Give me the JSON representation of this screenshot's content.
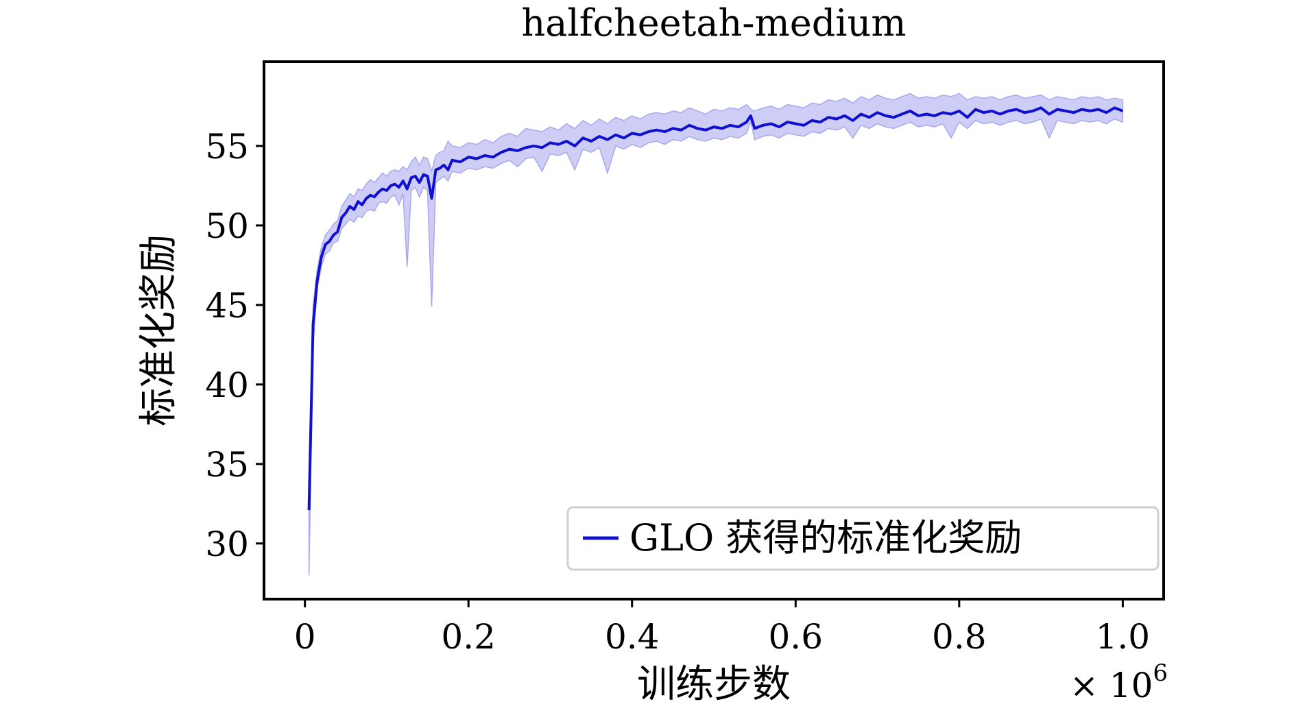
{
  "chart_data": {
    "type": "line",
    "title": "halfcheetah-medium",
    "xlabel": "训练步数",
    "ylabel": "标准化奖励",
    "x_multiplier_label": "× 10",
    "x_multiplier_exp": "6",
    "xlim": [
      -0.05,
      1.05
    ],
    "ylim": [
      26.5,
      60.3
    ],
    "xticks": [
      0,
      0.2,
      0.4,
      0.6,
      0.8,
      1.0
    ],
    "xtick_labels": [
      "0",
      "0.2",
      "0.4",
      "0.6",
      "0.8",
      "1.0"
    ],
    "yticks": [
      30,
      35,
      40,
      45,
      50,
      55
    ],
    "ytick_labels": [
      "30",
      "35",
      "40",
      "45",
      "50",
      "55"
    ],
    "grid": false,
    "legend_position": "lower-right",
    "colors": {
      "line": "#1010d0",
      "band": "#c8c8f4",
      "band_edge": "#a8a8ee"
    },
    "series": [
      {
        "name": "GLO 获得的标准化奖励",
        "x": [
          0.005,
          0.01,
          0.015,
          0.02,
          0.025,
          0.03,
          0.035,
          0.04,
          0.045,
          0.05,
          0.055,
          0.06,
          0.065,
          0.07,
          0.075,
          0.08,
          0.085,
          0.09,
          0.095,
          0.1,
          0.105,
          0.11,
          0.115,
          0.12,
          0.125,
          0.13,
          0.135,
          0.14,
          0.145,
          0.15,
          0.155,
          0.16,
          0.165,
          0.17,
          0.175,
          0.18,
          0.19,
          0.2,
          0.21,
          0.22,
          0.23,
          0.24,
          0.25,
          0.26,
          0.27,
          0.28,
          0.29,
          0.3,
          0.31,
          0.32,
          0.33,
          0.34,
          0.35,
          0.36,
          0.37,
          0.38,
          0.39,
          0.4,
          0.41,
          0.42,
          0.43,
          0.44,
          0.45,
          0.46,
          0.47,
          0.48,
          0.49,
          0.5,
          0.51,
          0.52,
          0.53,
          0.54,
          0.545,
          0.55,
          0.56,
          0.57,
          0.58,
          0.59,
          0.6,
          0.61,
          0.62,
          0.63,
          0.64,
          0.65,
          0.66,
          0.67,
          0.68,
          0.69,
          0.7,
          0.71,
          0.72,
          0.73,
          0.74,
          0.75,
          0.76,
          0.77,
          0.78,
          0.79,
          0.8,
          0.81,
          0.82,
          0.83,
          0.84,
          0.85,
          0.86,
          0.87,
          0.88,
          0.89,
          0.9,
          0.91,
          0.92,
          0.93,
          0.94,
          0.95,
          0.96,
          0.97,
          0.98,
          0.99,
          1.0
        ],
        "values": [
          32.1,
          43.8,
          46.5,
          48.0,
          48.8,
          49.0,
          49.4,
          49.6,
          50.5,
          50.8,
          51.2,
          51.0,
          51.5,
          51.3,
          51.7,
          51.9,
          51.8,
          52.1,
          52.3,
          52.2,
          52.5,
          52.6,
          52.4,
          52.8,
          52.3,
          53.0,
          53.1,
          52.7,
          53.2,
          53.1,
          51.7,
          53.5,
          53.6,
          53.8,
          53.5,
          54.1,
          54.0,
          54.3,
          54.2,
          54.4,
          54.3,
          54.6,
          54.8,
          54.7,
          54.9,
          55.0,
          54.9,
          55.2,
          55.1,
          55.3,
          55.0,
          55.5,
          55.3,
          55.6,
          55.4,
          55.7,
          55.5,
          55.8,
          55.7,
          55.9,
          56.0,
          55.9,
          56.1,
          56.0,
          56.3,
          56.1,
          56.0,
          56.2,
          56.1,
          56.3,
          56.2,
          56.5,
          56.9,
          56.1,
          56.3,
          56.4,
          56.2,
          56.5,
          56.4,
          56.3,
          56.6,
          56.5,
          56.8,
          56.7,
          56.9,
          56.6,
          57.0,
          56.8,
          57.1,
          56.9,
          56.8,
          57.0,
          57.2,
          56.9,
          57.0,
          56.9,
          57.1,
          57.0,
          57.2,
          56.8,
          57.3,
          57.1,
          57.2,
          57.0,
          57.2,
          57.3,
          57.1,
          57.2,
          57.4,
          57.0,
          57.3,
          57.2,
          57.1,
          57.3,
          57.2,
          57.3,
          57.1,
          57.4,
          57.2
        ],
        "lower": [
          28.0,
          42.5,
          46.0,
          47.4,
          48.2,
          48.4,
          48.9,
          49.0,
          49.8,
          50.1,
          50.4,
          50.2,
          50.6,
          50.5,
          50.9,
          51.0,
          50.9,
          51.4,
          51.5,
          51.4,
          51.8,
          51.9,
          51.3,
          52.0,
          47.4,
          52.2,
          52.4,
          51.8,
          52.4,
          52.2,
          44.9,
          52.7,
          52.9,
          53.1,
          52.8,
          53.4,
          53.3,
          53.6,
          53.5,
          53.7,
          53.6,
          53.9,
          54.1,
          53.7,
          54.2,
          54.3,
          53.4,
          54.5,
          54.4,
          54.6,
          53.5,
          54.8,
          54.6,
          54.9,
          53.3,
          55.0,
          54.8,
          55.1,
          54.9,
          55.2,
          55.3,
          55.1,
          55.4,
          55.3,
          55.6,
          55.4,
          55.3,
          55.5,
          55.4,
          55.6,
          55.5,
          55.8,
          56.5,
          55.4,
          55.6,
          55.7,
          55.5,
          55.8,
          55.7,
          55.6,
          55.9,
          55.8,
          56.1,
          56.0,
          56.2,
          55.5,
          56.3,
          56.1,
          56.4,
          56.2,
          56.1,
          56.3,
          56.5,
          56.2,
          56.3,
          56.2,
          56.4,
          55.5,
          56.5,
          56.1,
          56.6,
          56.4,
          56.5,
          56.3,
          56.5,
          56.6,
          56.4,
          56.5,
          56.7,
          55.5,
          56.6,
          56.5,
          56.4,
          56.6,
          56.5,
          56.6,
          56.4,
          56.7,
          56.5
        ],
        "upper": [
          32.6,
          45.0,
          47.2,
          48.6,
          49.4,
          49.7,
          50.1,
          50.3,
          51.2,
          51.6,
          52.0,
          51.8,
          52.3,
          52.2,
          52.6,
          52.9,
          52.7,
          53.0,
          53.3,
          53.1,
          53.4,
          53.5,
          53.4,
          53.7,
          53.5,
          54.0,
          54.3,
          53.8,
          54.3,
          54.2,
          53.4,
          54.4,
          54.6,
          54.7,
          55.3,
          55.0,
          54.9,
          55.2,
          55.1,
          55.4,
          55.2,
          55.6,
          55.8,
          55.6,
          56.1,
          56.0,
          55.9,
          56.2,
          56.0,
          56.4,
          56.1,
          56.6,
          56.3,
          56.7,
          56.4,
          56.8,
          56.6,
          56.9,
          56.7,
          57.0,
          57.1,
          57.0,
          57.2,
          57.1,
          57.4,
          57.2,
          57.0,
          57.3,
          57.2,
          57.4,
          57.3,
          57.6,
          57.3,
          57.2,
          57.4,
          57.5,
          57.3,
          57.6,
          57.5,
          57.4,
          57.7,
          57.6,
          57.9,
          57.8,
          58.0,
          57.7,
          58.1,
          57.9,
          58.2,
          58.0,
          57.9,
          58.1,
          58.3,
          58.0,
          58.1,
          58.0,
          58.2,
          58.1,
          58.3,
          57.9,
          58.1,
          58.0,
          58.1,
          57.9,
          58.1,
          58.2,
          58.0,
          58.1,
          58.2,
          57.9,
          58.1,
          58.0,
          57.9,
          58.1,
          58.0,
          58.1,
          57.9,
          58.0,
          57.9
        ]
      }
    ]
  }
}
